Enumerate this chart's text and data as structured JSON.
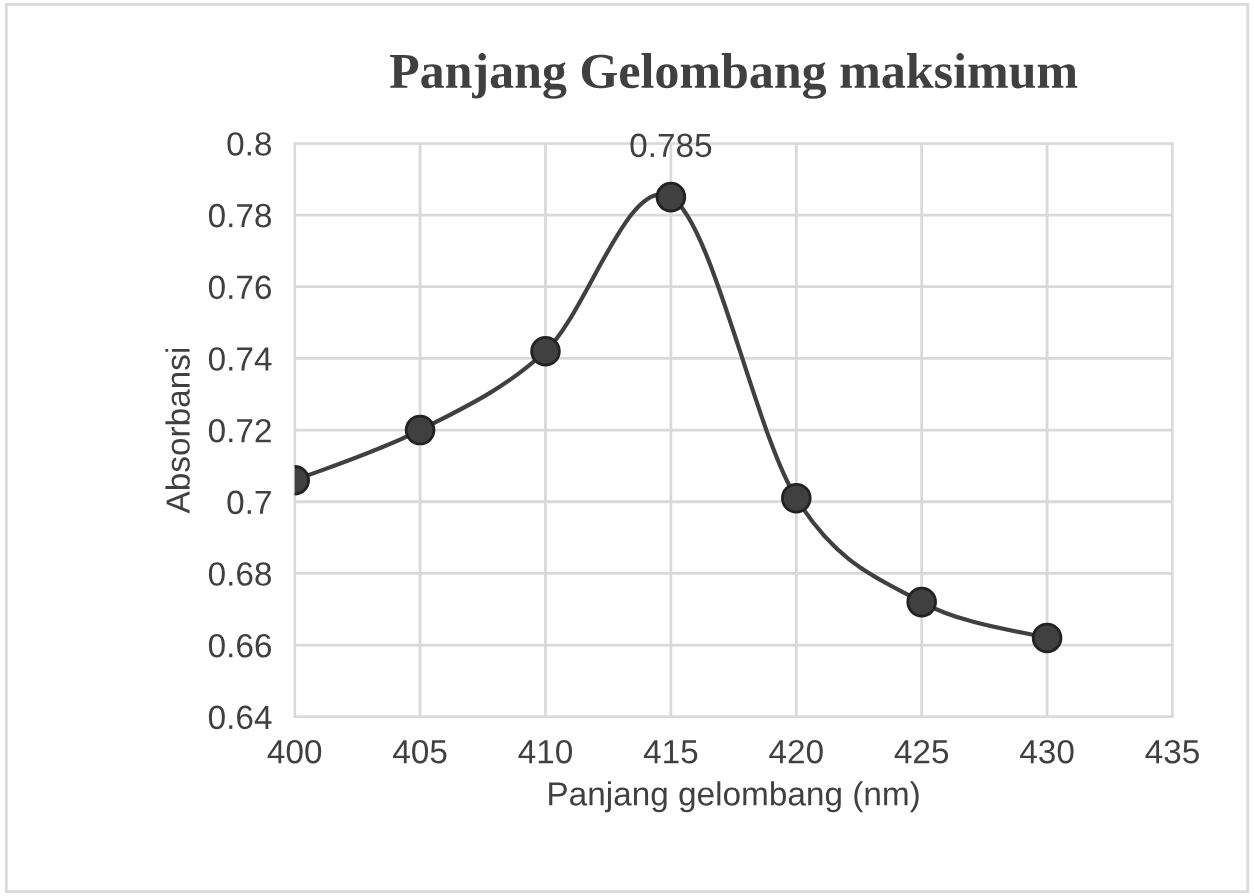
{
  "chart_data": {
    "type": "line",
    "title": "Panjang Gelombang maksimum",
    "xlabel": "Panjang gelombang (nm)",
    "ylabel": "Absorbansi",
    "x": [
      400,
      405,
      410,
      415,
      420,
      425,
      430
    ],
    "series": [
      {
        "color": "#404040",
        "values": [
          0.706,
          0.72,
          0.742,
          0.785,
          0.701,
          0.672,
          0.662
        ],
        "value_labels": [
          null,
          null,
          null,
          "0.785",
          null,
          null,
          null
        ]
      }
    ],
    "xlim": [
      400,
      435
    ],
    "xticks": [
      400,
      405,
      410,
      415,
      420,
      425,
      430,
      435
    ],
    "ylim": [
      0.64,
      0.8
    ],
    "yticks": [
      0.64,
      0.66,
      0.68,
      0.7,
      0.72,
      0.74,
      0.76,
      0.78,
      0.8
    ],
    "grid": true,
    "marker": "circle",
    "line_style": "solid"
  }
}
